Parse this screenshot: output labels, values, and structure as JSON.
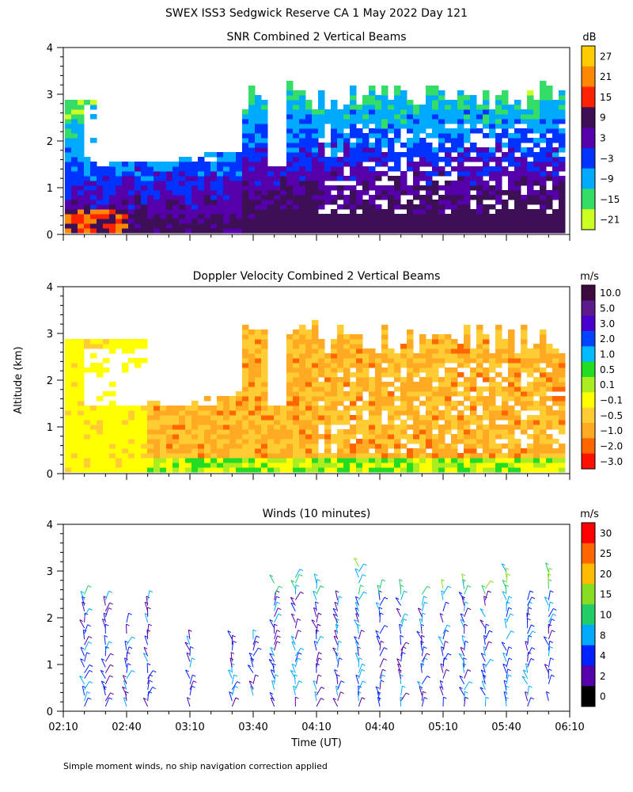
{
  "figure": {
    "title": "SWEX ISS3 Sedgwick Reserve CA   1 May 2022 Day 121",
    "footnote": "Simple moment winds, no ship navigation correction applied",
    "ylabel": "Altitude (km)",
    "xlabel": "Time (UT)"
  },
  "chart_data": [
    {
      "type": "heatmap",
      "title": "SNR Combined 2 Vertical Beams",
      "xlabel": "Time (UT)",
      "ylabel": "Altitude (km)",
      "x_ticks": [
        "02:10",
        "02:40",
        "03:10",
        "03:40",
        "04:10",
        "04:40",
        "05:10",
        "05:40",
        "06:10"
      ],
      "y_ticks": [
        0,
        1,
        2,
        3,
        4
      ],
      "ylim": [
        0,
        4
      ],
      "x_range": [
        "02:10",
        "06:10"
      ],
      "legend": {
        "unit": "dB",
        "labels": [
          "27",
          "21",
          "15",
          "9",
          "3",
          "−3",
          "−9",
          "−15",
          "−21"
        ],
        "colors": [
          "#ffcc00",
          "#ff8800",
          "#ff2200",
          "#3d1055",
          "#5500aa",
          "#0033ff",
          "#00aaff",
          "#33dd66",
          "#ccff22"
        ]
      }
    },
    {
      "type": "heatmap",
      "title": "Doppler Velocity Combined 2 Vertical Beams",
      "xlabel": "Time (UT)",
      "ylabel": "Altitude (km)",
      "x_ticks": [
        "02:10",
        "02:40",
        "03:10",
        "03:40",
        "04:10",
        "04:40",
        "05:10",
        "05:40",
        "06:10"
      ],
      "y_ticks": [
        0,
        1,
        2,
        3,
        4
      ],
      "ylim": [
        0,
        4
      ],
      "x_range": [
        "02:10",
        "06:10"
      ],
      "legend": {
        "unit": "m/s",
        "labels": [
          "10.0",
          "5.0",
          "3.0",
          "2.0",
          "1.0",
          "0.5",
          "0.1",
          "−0.1",
          "−0.5",
          "−1.0",
          "−2.0",
          "−3.0"
        ],
        "colors": [
          "#3d0a3d",
          "#5c1a8a",
          "#4a00cc",
          "#0044ff",
          "#00bbff",
          "#22dd22",
          "#aaee22",
          "#ffff00",
          "#ffcc33",
          "#ffaa22",
          "#ff6600",
          "#ff1100"
        ]
      }
    },
    {
      "type": "scatter",
      "title": "Winds (10 minutes)",
      "xlabel": "Time (UT)",
      "ylabel": "Altitude (km)",
      "x_ticks": [
        "02:10",
        "02:40",
        "03:10",
        "03:40",
        "04:10",
        "04:40",
        "05:10",
        "05:40",
        "06:10"
      ],
      "y_ticks": [
        0,
        1,
        2,
        3,
        4
      ],
      "ylim": [
        0,
        4
      ],
      "x_range": [
        "02:10",
        "06:10"
      ],
      "legend": {
        "unit": "m/s",
        "labels": [
          "30",
          "25",
          "20",
          "15",
          "10",
          "8",
          "4",
          "2",
          "0"
        ],
        "colors": [
          "#ff0000",
          "#ff6600",
          "#ffbb00",
          "#88dd22",
          "#22cc66",
          "#00aaff",
          "#0022ff",
          "#5500aa",
          "#000000"
        ]
      }
    }
  ]
}
